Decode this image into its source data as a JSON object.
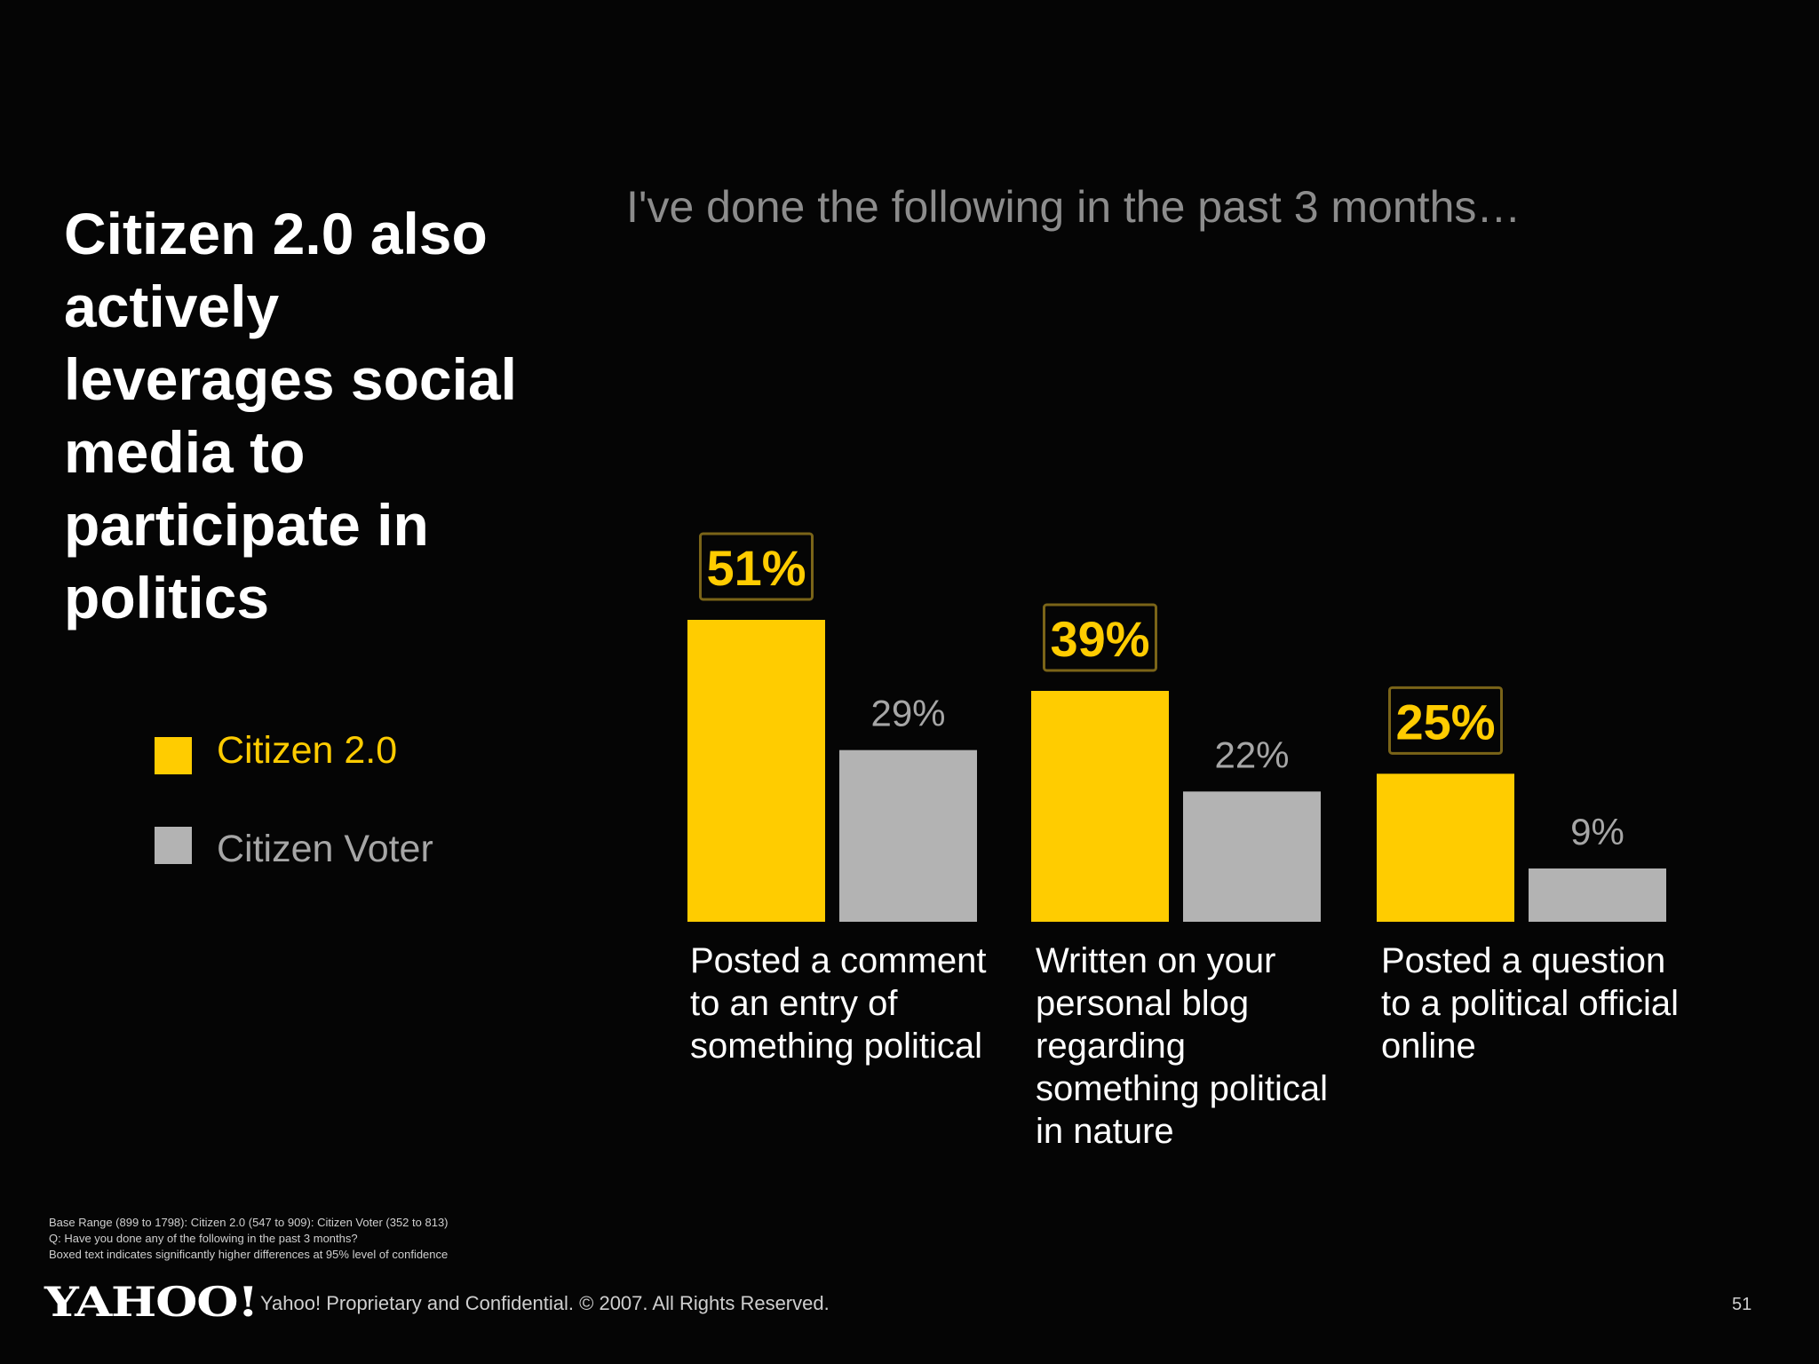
{
  "headline": "Citizen 2.0 also actively leverages social media to participate in politics",
  "legend": [
    {
      "name": "Citizen 2.0",
      "color": "#ffcc00"
    },
    {
      "name": "Citizen Voter",
      "color": "#b3b3b3"
    }
  ],
  "colors": {
    "accent": "#ffcc00",
    "secondary": "#b3b3b3",
    "background": "#050505",
    "label_gray": "#a6a6a6",
    "box_border": "#7a6418"
  },
  "chart_data": {
    "type": "bar",
    "title": "I've done the following in the past 3 months…",
    "categories": [
      "Posted a comment to an entry of something political",
      "Written on your personal blog regarding something political in nature",
      "Posted a question to a political official online"
    ],
    "series": [
      {
        "name": "Citizen 2.0",
        "values": [
          51,
          39,
          25
        ],
        "labels": [
          "51%",
          "39%",
          "25%"
        ],
        "boxed": [
          true,
          true,
          true
        ]
      },
      {
        "name": "Citizen Voter",
        "values": [
          29,
          22,
          9
        ],
        "labels": [
          "29%",
          "22%",
          "9%"
        ],
        "boxed": [
          false,
          false,
          false
        ]
      }
    ],
    "ylim": [
      0,
      51
    ],
    "grid": false,
    "legend_position": "left"
  },
  "footnotes": [
    "Base Range (899 to 1798): Citizen 2.0 (547 to 909): Citizen Voter (352 to 813)",
    "Q: Have you done any of the following in the past 3 months?",
    "Boxed text indicates significantly higher differences at 95% level of confidence"
  ],
  "footer": {
    "logo": "YAHOO!",
    "copyright": "Yahoo! Proprietary and Confidential. © 2007. All Rights Reserved.",
    "page_number": "51"
  }
}
